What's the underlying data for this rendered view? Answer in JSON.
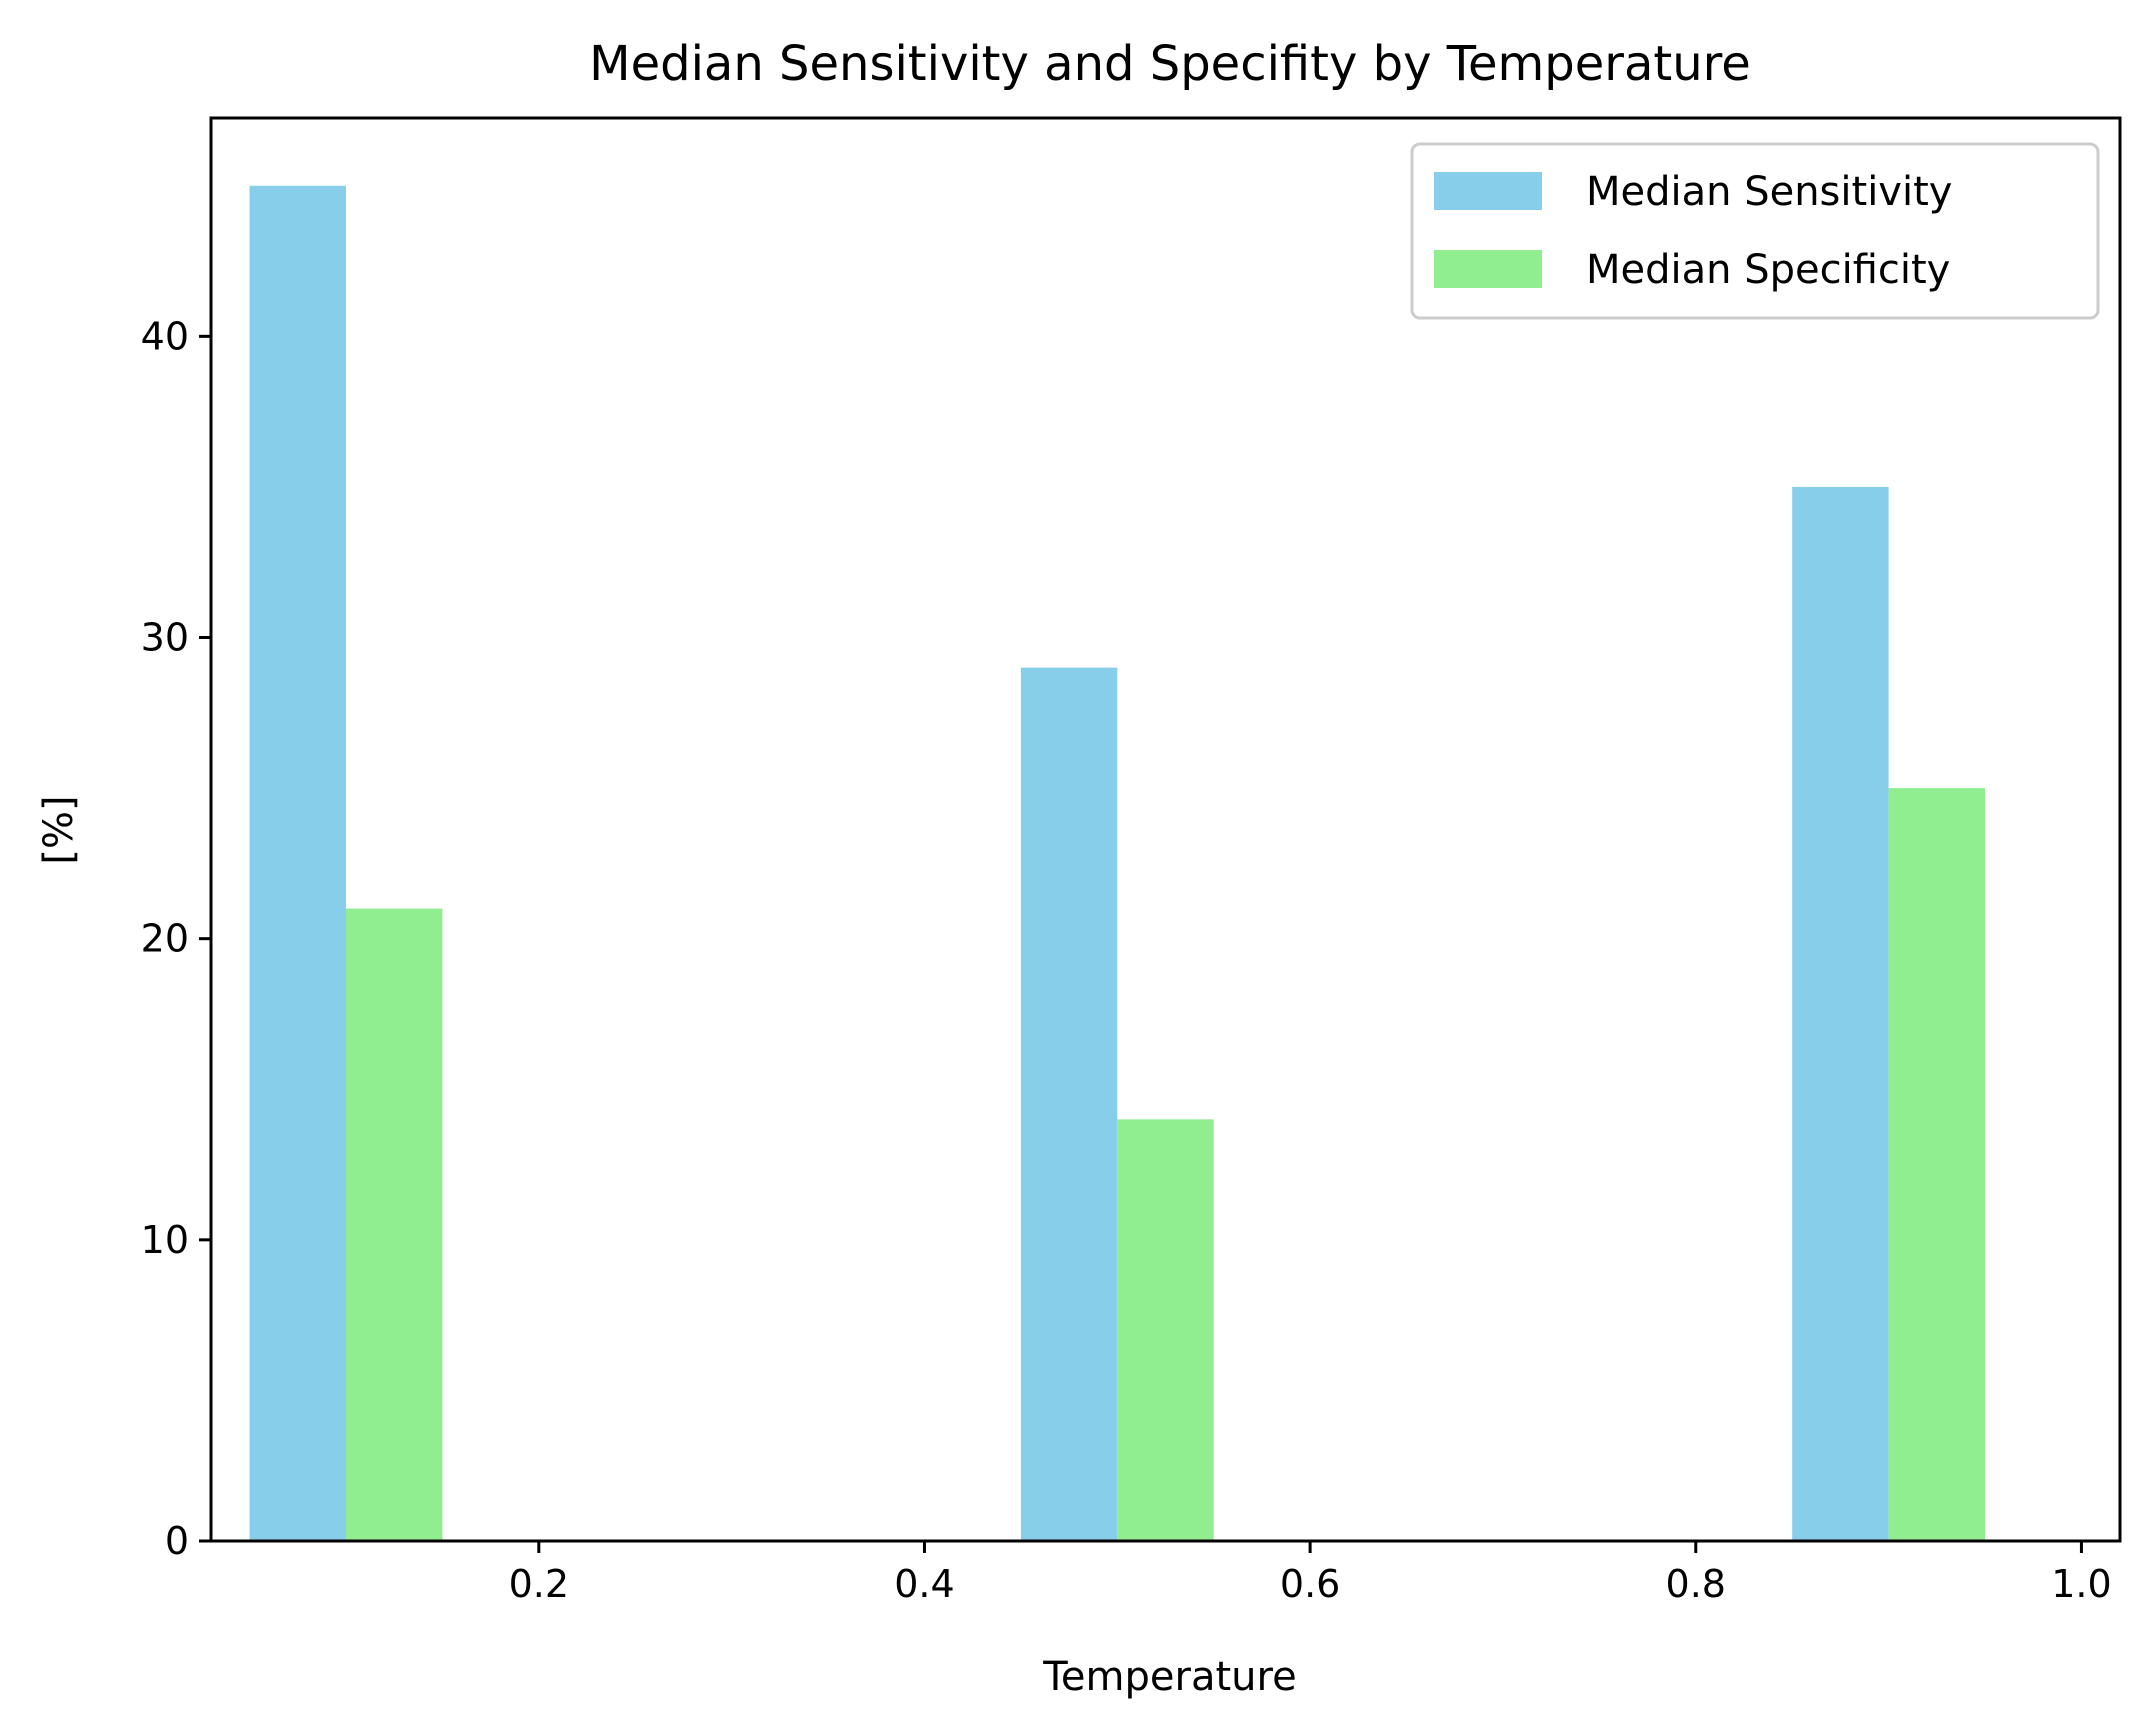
{
  "chart_data": {
    "type": "bar",
    "title": "Median Sensitivity and Specifity by Temperature",
    "xlabel": "Temperature",
    "ylabel": "[%]",
    "x": [
      0.1,
      0.5,
      0.9
    ],
    "xlim": [
      0.03,
      1.02
    ],
    "ylim": [
      0,
      47.25
    ],
    "xticks": [
      0.2,
      0.4,
      0.6,
      0.8,
      1.0
    ],
    "xtick_labels": [
      "0.2",
      "0.4",
      "0.6",
      "0.8",
      "1.0"
    ],
    "yticks": [
      0,
      10,
      20,
      30,
      40
    ],
    "ytick_labels": [
      "0",
      "10",
      "20",
      "30",
      "40"
    ],
    "bar_width": 0.05,
    "grid": false,
    "legend_position": "top-right",
    "series": [
      {
        "name": "Median Sensitivity",
        "color": "#87ceeb",
        "values": [
          45,
          29,
          35
        ]
      },
      {
        "name": "Median Specificity",
        "color": "#90ee90",
        "values": [
          21,
          14,
          25
        ]
      }
    ]
  }
}
